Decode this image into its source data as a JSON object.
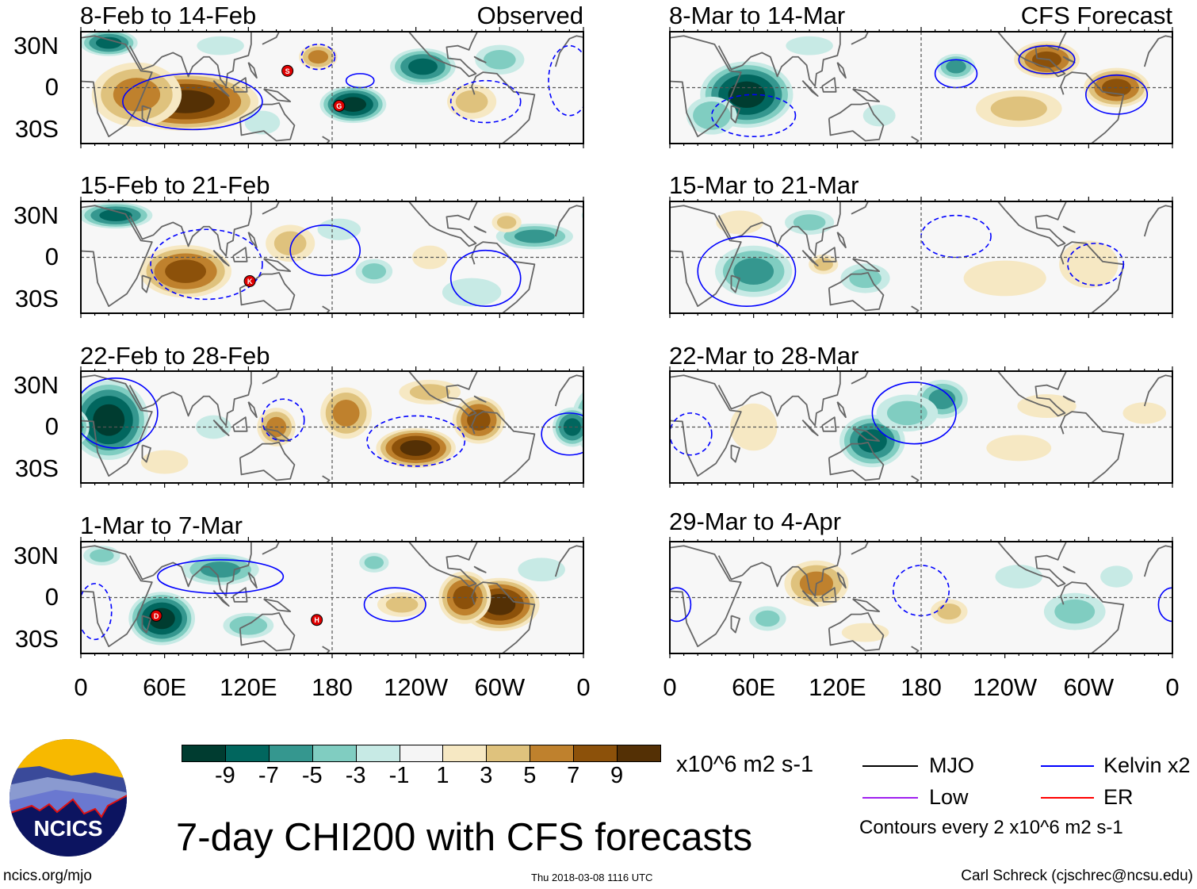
{
  "figure_title": "7-day CHI200 with CFS forecasts",
  "columns": {
    "left_label": "Observed",
    "right_label": "CFS Forecast"
  },
  "lat_ticks": [
    "30N",
    "0",
    "30S"
  ],
  "lon_ticks": [
    "0",
    "60E",
    "120E",
    "180",
    "120W",
    "60W",
    "0"
  ],
  "colorbar": {
    "labels": [
      "-9",
      "-7",
      "-5",
      "-3",
      "-1",
      "1",
      "3",
      "5",
      "7",
      "9"
    ],
    "colors": [
      "#003c30",
      "#01665e",
      "#35978f",
      "#80cdc1",
      "#c7eae5",
      "#f5f5f5",
      "#f6e8c3",
      "#dfc27d",
      "#bf812d",
      "#8c510a",
      "#543005"
    ],
    "units": "x10^6 m2 s-1"
  },
  "legend": {
    "items": [
      {
        "label": "MJO",
        "color": "#000000"
      },
      {
        "label": "Kelvin x2",
        "color": "#0000ff"
      },
      {
        "label": "Low",
        "color": "#a020f0"
      },
      {
        "label": "ER",
        "color": "#ff0000"
      }
    ],
    "contour_note": "Contours every 2 x10^6 m2 s-1"
  },
  "footer": {
    "site": "ncics.org/mjo",
    "timestamp": "Thu 2018-03-08 1116 UTC",
    "author": "Carl Schreck (cjschrec@ncsu.edu)",
    "logo_text": "NCICS"
  },
  "panels": [
    {
      "title": "8-Feb to 14-Feb",
      "kind": "observed",
      "anomalies": [
        [
          75,
          -10,
          55,
          22,
          10
        ],
        [
          40,
          -5,
          35,
          25,
          6
        ],
        [
          20,
          32,
          22,
          10,
          -8
        ],
        [
          195,
          -12,
          25,
          14,
          -10
        ],
        [
          245,
          15,
          25,
          14,
          -8
        ],
        [
          170,
          22,
          15,
          10,
          6
        ],
        [
          280,
          -10,
          20,
          14,
          4
        ],
        [
          300,
          20,
          20,
          12,
          -4
        ],
        [
          130,
          -25,
          15,
          10,
          -3
        ],
        [
          100,
          30,
          20,
          8,
          -3
        ]
      ],
      "contours": [
        [
          80,
          -10,
          50,
          20,
          0
        ],
        [
          200,
          5,
          10,
          5,
          0
        ],
        [
          290,
          -10,
          25,
          15,
          1
        ],
        [
          170,
          22,
          12,
          9,
          1
        ],
        [
          350,
          5,
          15,
          25,
          1
        ]
      ],
      "storms": [
        [
          "S",
          148,
          12
        ],
        [
          "G",
          185,
          -13
        ]
      ]
    },
    {
      "title": "15-Feb to 21-Feb",
      "kind": "observed",
      "anomalies": [
        [
          25,
          30,
          28,
          10,
          -8
        ],
        [
          75,
          -10,
          35,
          20,
          8
        ],
        [
          150,
          10,
          20,
          15,
          4
        ],
        [
          325,
          15,
          30,
          10,
          -6
        ],
        [
          210,
          -10,
          15,
          10,
          -4
        ],
        [
          305,
          25,
          12,
          8,
          4
        ],
        [
          280,
          -25,
          25,
          12,
          -3
        ],
        [
          250,
          0,
          15,
          10,
          3
        ],
        [
          185,
          20,
          20,
          10,
          -2
        ]
      ],
      "contours": [
        [
          90,
          -5,
          40,
          25,
          1
        ],
        [
          175,
          5,
          25,
          18,
          0
        ],
        [
          290,
          -15,
          25,
          20,
          0
        ]
      ],
      "storms": [
        [
          "K",
          121,
          -17
        ]
      ]
    },
    {
      "title": "22-Feb to 28-Feb",
      "kind": "observed",
      "anomalies": [
        [
          20,
          5,
          30,
          30,
          -10
        ],
        [
          240,
          -15,
          30,
          15,
          10
        ],
        [
          285,
          5,
          20,
          18,
          8
        ],
        [
          190,
          10,
          20,
          20,
          6
        ],
        [
          140,
          0,
          15,
          15,
          6
        ],
        [
          352,
          0,
          15,
          15,
          -8
        ],
        [
          95,
          0,
          15,
          10,
          -3
        ],
        [
          60,
          -25,
          20,
          10,
          3
        ],
        [
          250,
          25,
          25,
          10,
          4
        ]
      ],
      "contours": [
        [
          25,
          10,
          30,
          25,
          0
        ],
        [
          240,
          -10,
          35,
          18,
          1
        ],
        [
          145,
          5,
          15,
          15,
          1
        ],
        [
          350,
          -5,
          20,
          15,
          0
        ]
      ],
      "storms": []
    },
    {
      "title": "1-Mar to 7-Mar",
      "kind": "observed",
      "anomalies": [
        [
          58,
          -15,
          25,
          20,
          -10
        ],
        [
          100,
          20,
          30,
          12,
          -6
        ],
        [
          300,
          -5,
          30,
          20,
          10
        ],
        [
          275,
          0,
          20,
          20,
          8
        ],
        [
          120,
          -20,
          20,
          10,
          -5
        ],
        [
          210,
          25,
          12,
          8,
          -4
        ],
        [
          230,
          -5,
          20,
          10,
          4
        ],
        [
          330,
          20,
          20,
          10,
          -3
        ],
        [
          15,
          30,
          15,
          8,
          -4
        ]
      ],
      "contours": [
        [
          100,
          15,
          45,
          12,
          0
        ],
        [
          225,
          -5,
          22,
          12,
          0
        ],
        [
          10,
          -10,
          12,
          20,
          1
        ]
      ],
      "storms": [
        [
          "D",
          54,
          -13
        ],
        [
          "H",
          169,
          -16
        ]
      ]
    },
    {
      "title": "8-Mar to 14-Mar",
      "kind": "forecast",
      "anomalies": [
        [
          55,
          -5,
          35,
          25,
          -10
        ],
        [
          30,
          -20,
          20,
          15,
          -5
        ],
        [
          205,
          15,
          15,
          10,
          -6
        ],
        [
          270,
          20,
          25,
          14,
          8
        ],
        [
          320,
          0,
          25,
          15,
          8
        ],
        [
          250,
          -15,
          35,
          15,
          4
        ],
        [
          100,
          30,
          20,
          8,
          -3
        ],
        [
          150,
          -20,
          15,
          10,
          -2
        ]
      ],
      "contours": [
        [
          205,
          10,
          15,
          10,
          0
        ],
        [
          320,
          -5,
          22,
          14,
          0
        ],
        [
          60,
          -20,
          30,
          15,
          1
        ],
        [
          270,
          20,
          20,
          10,
          0
        ]
      ],
      "storms": []
    },
    {
      "title": "15-Mar to 21-Mar",
      "kind": "forecast",
      "anomalies": [
        [
          60,
          -10,
          30,
          20,
          -6
        ],
        [
          100,
          25,
          20,
          10,
          -4
        ],
        [
          140,
          -15,
          20,
          12,
          -4
        ],
        [
          240,
          -15,
          35,
          15,
          3
        ],
        [
          50,
          25,
          20,
          10,
          3
        ],
        [
          300,
          -5,
          25,
          20,
          3
        ],
        [
          110,
          -5,
          12,
          8,
          4
        ]
      ],
      "contours": [
        [
          55,
          -10,
          35,
          25,
          0
        ],
        [
          205,
          15,
          25,
          15,
          1
        ],
        [
          305,
          -5,
          20,
          15,
          1
        ]
      ],
      "storms": []
    },
    {
      "title": "22-Mar to 28-Mar",
      "kind": "forecast",
      "anomalies": [
        [
          145,
          -10,
          25,
          20,
          -8
        ],
        [
          195,
          20,
          20,
          15,
          -6
        ],
        [
          170,
          10,
          25,
          15,
          -4
        ],
        [
          60,
          0,
          20,
          20,
          3
        ],
        [
          250,
          -15,
          30,
          12,
          2
        ],
        [
          270,
          15,
          25,
          10,
          3
        ],
        [
          340,
          10,
          20,
          10,
          2
        ]
      ],
      "contours": [
        [
          175,
          10,
          30,
          22,
          0
        ],
        [
          15,
          -5,
          15,
          15,
          1
        ]
      ],
      "storms": []
    },
    {
      "title": "29-Mar to 4-Apr",
      "kind": "forecast",
      "anomalies": [
        [
          105,
          10,
          25,
          18,
          6
        ],
        [
          200,
          -10,
          15,
          10,
          4
        ],
        [
          70,
          -15,
          15,
          10,
          -4
        ],
        [
          290,
          -10,
          25,
          15,
          -4
        ],
        [
          250,
          15,
          20,
          10,
          -3
        ],
        [
          140,
          -25,
          20,
          8,
          3
        ],
        [
          320,
          15,
          15,
          10,
          -2
        ]
      ],
      "contours": [
        [
          180,
          5,
          20,
          18,
          1
        ],
        [
          5,
          -5,
          10,
          12,
          0
        ],
        [
          360,
          -5,
          10,
          12,
          0
        ]
      ],
      "storms": []
    }
  ]
}
